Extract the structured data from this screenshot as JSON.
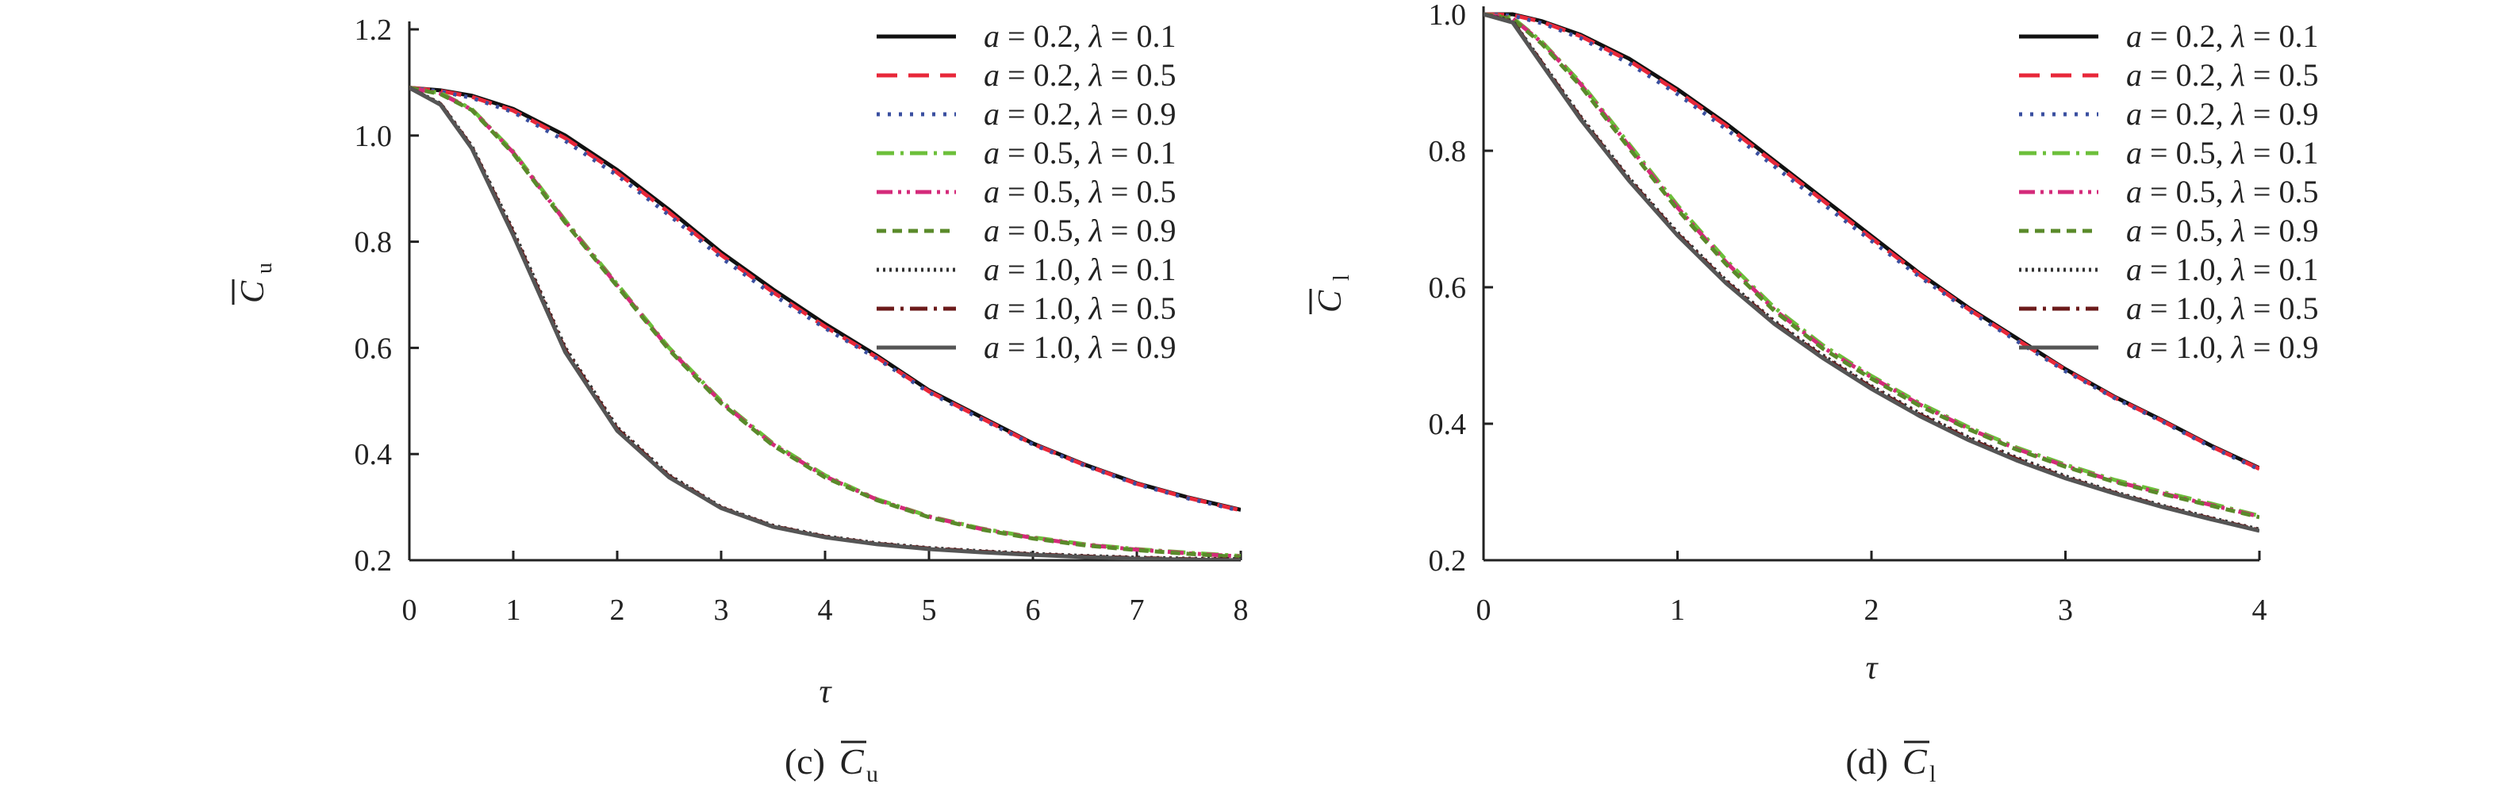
{
  "chart_data": [
    {
      "type": "line",
      "caption_prefix": "(c)",
      "caption_symbol": "C",
      "caption_sub": "u",
      "xlabel": "τ",
      "ylabel_symbol": "C",
      "ylabel_sub": "u",
      "xlim": [
        0,
        8
      ],
      "ylim": [
        0.2,
        1.2
      ],
      "xticks": [
        "0",
        "1",
        "2",
        "3",
        "4",
        "5",
        "6",
        "7",
        "8"
      ],
      "yticks": [
        "0.2",
        "0.4",
        "0.6",
        "0.8",
        "1.0",
        "1.2"
      ],
      "legend_position": "top-right",
      "series": [
        {
          "name": "a = 0.2,  λ = 0.1",
          "a": "0.2",
          "lambda": "0.1",
          "color": "#111111",
          "dash": "solid",
          "x": [
            0,
            0.3,
            0.6,
            1,
            1.5,
            2,
            2.5,
            3,
            3.5,
            4,
            4.5,
            5,
            5.5,
            6,
            6.5,
            7,
            7.5,
            8
          ],
          "y": [
            1.09,
            1.085,
            1.075,
            1.05,
            1.0,
            0.935,
            0.86,
            0.78,
            0.71,
            0.645,
            0.585,
            0.52,
            0.47,
            0.42,
            0.38,
            0.345,
            0.318,
            0.295
          ]
        },
        {
          "name": "a = 0.2,  λ = 0.5",
          "a": "0.2",
          "lambda": "0.5",
          "color": "#e8283a",
          "dash": "dash",
          "x": [
            0,
            0.3,
            0.6,
            1,
            1.5,
            2,
            2.5,
            3,
            3.5,
            4,
            4.5,
            5,
            5.5,
            6,
            6.5,
            7,
            7.5,
            8
          ],
          "y": [
            1.09,
            1.084,
            1.073,
            1.047,
            0.995,
            0.93,
            0.855,
            0.775,
            0.705,
            0.64,
            0.582,
            0.518,
            0.468,
            0.419,
            0.379,
            0.344,
            0.317,
            0.294
          ]
        },
        {
          "name": "a = 0.2,  λ = 0.9",
          "a": "0.2",
          "lambda": "0.9",
          "color": "#3a4fa0",
          "dash": "dot",
          "x": [
            0,
            0.3,
            0.6,
            1,
            1.5,
            2,
            2.5,
            3,
            3.5,
            4,
            4.5,
            5,
            5.5,
            6,
            6.5,
            7,
            7.5,
            8
          ],
          "y": [
            1.09,
            1.083,
            1.071,
            1.044,
            0.99,
            0.925,
            0.85,
            0.77,
            0.7,
            0.637,
            0.58,
            0.516,
            0.466,
            0.418,
            0.378,
            0.343,
            0.316,
            0.293
          ]
        },
        {
          "name": "a = 0.5,  λ = 0.1",
          "a": "0.5",
          "lambda": "0.1",
          "color": "#6cbf3a",
          "dash": "dashdot",
          "x": [
            0,
            0.3,
            0.6,
            1,
            1.5,
            2,
            2.5,
            3,
            3.5,
            4,
            4.5,
            5,
            5.5,
            6,
            6.5,
            7,
            7.5,
            8
          ],
          "y": [
            1.09,
            1.08,
            1.05,
            0.97,
            0.84,
            0.72,
            0.6,
            0.5,
            0.42,
            0.36,
            0.315,
            0.283,
            0.26,
            0.243,
            0.23,
            0.221,
            0.214,
            0.208
          ]
        },
        {
          "name": "a = 0.5,  λ = 0.5",
          "a": "0.5",
          "lambda": "0.5",
          "color": "#d42a7a",
          "dash": "dashdotdot",
          "x": [
            0,
            0.3,
            0.6,
            1,
            1.5,
            2,
            2.5,
            3,
            3.5,
            4,
            4.5,
            5,
            5.5,
            6,
            6.5,
            7,
            7.5,
            8
          ],
          "y": [
            1.09,
            1.079,
            1.049,
            0.968,
            0.838,
            0.718,
            0.598,
            0.498,
            0.418,
            0.358,
            0.314,
            0.282,
            0.259,
            0.242,
            0.229,
            0.22,
            0.213,
            0.207
          ]
        },
        {
          "name": "a = 0.5,  λ = 0.9",
          "a": "0.5",
          "lambda": "0.9",
          "color": "#5a8a2a",
          "dash": "shortdash",
          "x": [
            0,
            0.3,
            0.6,
            1,
            1.5,
            2,
            2.5,
            3,
            3.5,
            4,
            4.5,
            5,
            5.5,
            6,
            6.5,
            7,
            7.5,
            8
          ],
          "y": [
            1.09,
            1.078,
            1.048,
            0.966,
            0.836,
            0.716,
            0.596,
            0.496,
            0.416,
            0.356,
            0.313,
            0.281,
            0.258,
            0.241,
            0.228,
            0.219,
            0.212,
            0.206
          ]
        },
        {
          "name": "a = 1.0,  λ = 0.1",
          "a": "1.0",
          "lambda": "0.1",
          "color": "#333333",
          "dash": "finedot",
          "x": [
            0,
            0.3,
            0.6,
            1,
            1.5,
            2,
            2.5,
            3,
            3.5,
            4,
            4.5,
            5,
            5.5,
            6,
            6.5,
            7,
            7.5,
            8
          ],
          "y": [
            1.09,
            1.06,
            0.98,
            0.82,
            0.6,
            0.45,
            0.36,
            0.3,
            0.265,
            0.245,
            0.232,
            0.223,
            0.217,
            0.212,
            0.208,
            0.205,
            0.203,
            0.202
          ]
        },
        {
          "name": "a = 1.0,  λ = 0.5",
          "a": "1.0",
          "lambda": "0.5",
          "color": "#6b1a1a",
          "dash": "dashdot",
          "x": [
            0,
            0.3,
            0.6,
            1,
            1.5,
            2,
            2.5,
            3,
            3.5,
            4,
            4.5,
            5,
            5.5,
            6,
            6.5,
            7,
            7.5,
            8
          ],
          "y": [
            1.09,
            1.059,
            0.978,
            0.816,
            0.596,
            0.447,
            0.358,
            0.299,
            0.264,
            0.244,
            0.231,
            0.222,
            0.216,
            0.211,
            0.207,
            0.204,
            0.202,
            0.201
          ]
        },
        {
          "name": "a = 1.0,  λ = 0.9",
          "a": "1.0",
          "lambda": "0.9",
          "color": "#555555",
          "dash": "solid",
          "x": [
            0,
            0.3,
            0.6,
            1,
            1.5,
            2,
            2.5,
            3,
            3.5,
            4,
            4.5,
            5,
            5.5,
            6,
            6.5,
            7,
            7.5,
            8
          ],
          "y": [
            1.09,
            1.058,
            0.976,
            0.812,
            0.592,
            0.444,
            0.356,
            0.298,
            0.263,
            0.243,
            0.23,
            0.221,
            0.215,
            0.21,
            0.206,
            0.203,
            0.201,
            0.2
          ]
        }
      ]
    },
    {
      "type": "line",
      "caption_prefix": "(d)",
      "caption_symbol": "C",
      "caption_sub": "l",
      "xlabel": "τ",
      "ylabel_symbol": "C",
      "ylabel_sub": "l",
      "xlim": [
        0,
        4
      ],
      "ylim": [
        0.2,
        1.0
      ],
      "xticks": [
        "0",
        "1",
        "2",
        "3",
        "4"
      ],
      "yticks": [
        "0.2",
        "0.4",
        "0.6",
        "0.8",
        "1.0"
      ],
      "legend_position": "top-right",
      "series": [
        {
          "name": "a = 0.2,  λ = 0.1",
          "a": "0.2",
          "lambda": "0.1",
          "color": "#111111",
          "dash": "solid",
          "x": [
            0,
            0.15,
            0.3,
            0.5,
            0.75,
            1,
            1.25,
            1.5,
            1.75,
            2,
            2.25,
            2.5,
            2.75,
            3,
            3.25,
            3.5,
            3.75,
            4
          ],
          "y": [
            1.0,
            1.0,
            0.99,
            0.97,
            0.935,
            0.89,
            0.84,
            0.785,
            0.73,
            0.675,
            0.62,
            0.57,
            0.525,
            0.48,
            0.44,
            0.405,
            0.368,
            0.335
          ]
        },
        {
          "name": "a = 0.2,  λ = 0.5",
          "a": "0.2",
          "lambda": "0.5",
          "color": "#e8283a",
          "dash": "dash",
          "x": [
            0,
            0.15,
            0.3,
            0.5,
            0.75,
            1,
            1.25,
            1.5,
            1.75,
            2,
            2.25,
            2.5,
            2.75,
            3,
            3.25,
            3.5,
            3.75,
            4
          ],
          "y": [
            1.0,
            0.999,
            0.989,
            0.968,
            0.932,
            0.887,
            0.837,
            0.782,
            0.727,
            0.672,
            0.618,
            0.568,
            0.523,
            0.479,
            0.439,
            0.404,
            0.367,
            0.334
          ]
        },
        {
          "name": "a = 0.2,  λ = 0.9",
          "a": "0.2",
          "lambda": "0.9",
          "color": "#3a4fa0",
          "dash": "dot",
          "x": [
            0,
            0.15,
            0.3,
            0.5,
            0.75,
            1,
            1.25,
            1.5,
            1.75,
            2,
            2.25,
            2.5,
            2.75,
            3,
            3.25,
            3.5,
            3.75,
            4
          ],
          "y": [
            1.0,
            0.998,
            0.987,
            0.965,
            0.928,
            0.883,
            0.832,
            0.777,
            0.722,
            0.668,
            0.615,
            0.566,
            0.521,
            0.477,
            0.438,
            0.403,
            0.366,
            0.333
          ]
        },
        {
          "name": "a = 0.5,  λ = 0.1",
          "a": "0.5",
          "lambda": "0.1",
          "color": "#6cbf3a",
          "dash": "dashdot",
          "x": [
            0,
            0.15,
            0.3,
            0.5,
            0.75,
            1,
            1.25,
            1.5,
            1.75,
            2,
            2.25,
            2.5,
            2.75,
            3,
            3.25,
            3.5,
            3.75,
            4
          ],
          "y": [
            1.0,
            0.995,
            0.96,
            0.9,
            0.81,
            0.72,
            0.64,
            0.57,
            0.515,
            0.47,
            0.43,
            0.395,
            0.365,
            0.34,
            0.318,
            0.3,
            0.283,
            0.265
          ]
        },
        {
          "name": "a = 0.5,  λ = 0.5",
          "a": "0.5",
          "lambda": "0.5",
          "color": "#d42a7a",
          "dash": "dashdotdot",
          "x": [
            0,
            0.15,
            0.3,
            0.5,
            0.75,
            1,
            1.25,
            1.5,
            1.75,
            2,
            2.25,
            2.5,
            2.75,
            3,
            3.25,
            3.5,
            3.75,
            4
          ],
          "y": [
            1.0,
            0.994,
            0.959,
            0.898,
            0.807,
            0.717,
            0.637,
            0.567,
            0.512,
            0.468,
            0.428,
            0.393,
            0.363,
            0.338,
            0.316,
            0.298,
            0.281,
            0.264
          ]
        },
        {
          "name": "a = 0.5,  λ = 0.9",
          "a": "0.5",
          "lambda": "0.9",
          "color": "#5a8a2a",
          "dash": "shortdash",
          "x": [
            0,
            0.15,
            0.3,
            0.5,
            0.75,
            1,
            1.25,
            1.5,
            1.75,
            2,
            2.25,
            2.5,
            2.75,
            3,
            3.25,
            3.5,
            3.75,
            4
          ],
          "y": [
            1.0,
            0.993,
            0.957,
            0.895,
            0.804,
            0.714,
            0.634,
            0.565,
            0.51,
            0.466,
            0.426,
            0.392,
            0.362,
            0.337,
            0.315,
            0.297,
            0.28,
            0.263
          ]
        },
        {
          "name": "a = 1.0,  λ = 0.1",
          "a": "1.0",
          "lambda": "0.1",
          "color": "#333333",
          "dash": "finedot",
          "x": [
            0,
            0.15,
            0.3,
            0.5,
            0.75,
            1,
            1.25,
            1.5,
            1.75,
            2,
            2.25,
            2.5,
            2.75,
            3,
            3.25,
            3.5,
            3.75,
            4
          ],
          "y": [
            1.0,
            0.99,
            0.93,
            0.85,
            0.76,
            0.68,
            0.61,
            0.55,
            0.5,
            0.455,
            0.415,
            0.38,
            0.35,
            0.323,
            0.3,
            0.28,
            0.262,
            0.245
          ]
        },
        {
          "name": "a = 1.0,  λ = 0.5",
          "a": "1.0",
          "lambda": "0.5",
          "color": "#6b1a1a",
          "dash": "dashdot",
          "x": [
            0,
            0.15,
            0.3,
            0.5,
            0.75,
            1,
            1.25,
            1.5,
            1.75,
            2,
            2.25,
            2.5,
            2.75,
            3,
            3.25,
            3.5,
            3.75,
            4
          ],
          "y": [
            1.0,
            0.989,
            0.929,
            0.848,
            0.758,
            0.678,
            0.608,
            0.548,
            0.498,
            0.453,
            0.413,
            0.378,
            0.348,
            0.321,
            0.299,
            0.279,
            0.261,
            0.244
          ]
        },
        {
          "name": "a = 1.0,  λ = 0.9",
          "a": "1.0",
          "lambda": "0.9",
          "color": "#555555",
          "dash": "solid",
          "x": [
            0,
            0.15,
            0.3,
            0.5,
            0.75,
            1,
            1.25,
            1.5,
            1.75,
            2,
            2.25,
            2.5,
            2.75,
            3,
            3.25,
            3.5,
            3.75,
            4
          ],
          "y": [
            1.0,
            0.988,
            0.927,
            0.846,
            0.756,
            0.676,
            0.606,
            0.546,
            0.496,
            0.451,
            0.411,
            0.376,
            0.346,
            0.32,
            0.298,
            0.278,
            0.26,
            0.243
          ]
        }
      ]
    }
  ]
}
